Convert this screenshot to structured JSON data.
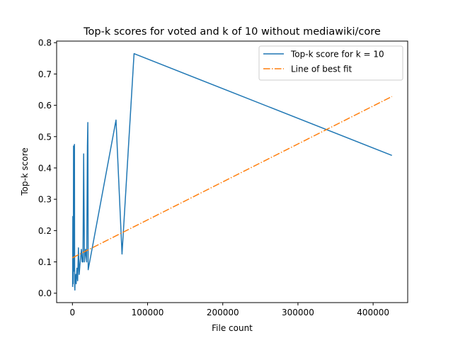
{
  "chart_data": {
    "type": "line",
    "title": "Top-k scores for voted and k of 10 without mediawiki/core",
    "xlabel": "File count",
    "ylabel": "Top-k score",
    "xlim": [
      -21000,
      446000
    ],
    "ylim": [
      -0.03,
      0.805
    ],
    "x_ticks": [
      0,
      100000,
      200000,
      300000,
      400000
    ],
    "x_tick_labels": [
      "0",
      "100000",
      "200000",
      "300000",
      "400000"
    ],
    "y_ticks": [
      0.0,
      0.1,
      0.2,
      0.3,
      0.4,
      0.5,
      0.6,
      0.7,
      0.8
    ],
    "y_tick_labels": [
      "0.0",
      "0.1",
      "0.2",
      "0.3",
      "0.4",
      "0.5",
      "0.6",
      "0.7",
      "0.8"
    ],
    "grid": false,
    "legend_position": "top-right",
    "series": [
      {
        "name": "Top-k score for k = 10",
        "color": "#1f77b4",
        "style": "solid",
        "points": [
          [
            300,
            0.02
          ],
          [
            600,
            0.245
          ],
          [
            900,
            0.03
          ],
          [
            1200,
            0.1
          ],
          [
            1500,
            0.47
          ],
          [
            1800,
            0.09
          ],
          [
            2100,
            0.1
          ],
          [
            2400,
            0.07
          ],
          [
            2700,
            0.475
          ],
          [
            3000,
            0.02
          ],
          [
            3300,
            0.01
          ],
          [
            3600,
            0.05
          ],
          [
            4000,
            0.035
          ],
          [
            4500,
            0.06
          ],
          [
            5000,
            0.03
          ],
          [
            6000,
            0.08
          ],
          [
            7000,
            0.04
          ],
          [
            8000,
            0.145
          ],
          [
            9000,
            0.06
          ],
          [
            10000,
            0.09
          ],
          [
            12000,
            0.14
          ],
          [
            13000,
            0.1
          ],
          [
            14000,
            0.1
          ],
          [
            15000,
            0.445
          ],
          [
            16000,
            0.1
          ],
          [
            17500,
            0.14
          ],
          [
            19000,
            0.1
          ],
          [
            20000,
            0.47
          ],
          [
            20500,
            0.545
          ],
          [
            21000,
            0.075
          ],
          [
            58000,
            0.553
          ],
          [
            66000,
            0.125
          ],
          [
            82000,
            0.765
          ],
          [
            425000,
            0.44
          ]
        ]
      },
      {
        "name": "Line of best fit",
        "color": "#ff7f0e",
        "style": "dashdot",
        "points": [
          [
            0,
            0.113
          ],
          [
            425000,
            0.628
          ]
        ]
      }
    ]
  }
}
